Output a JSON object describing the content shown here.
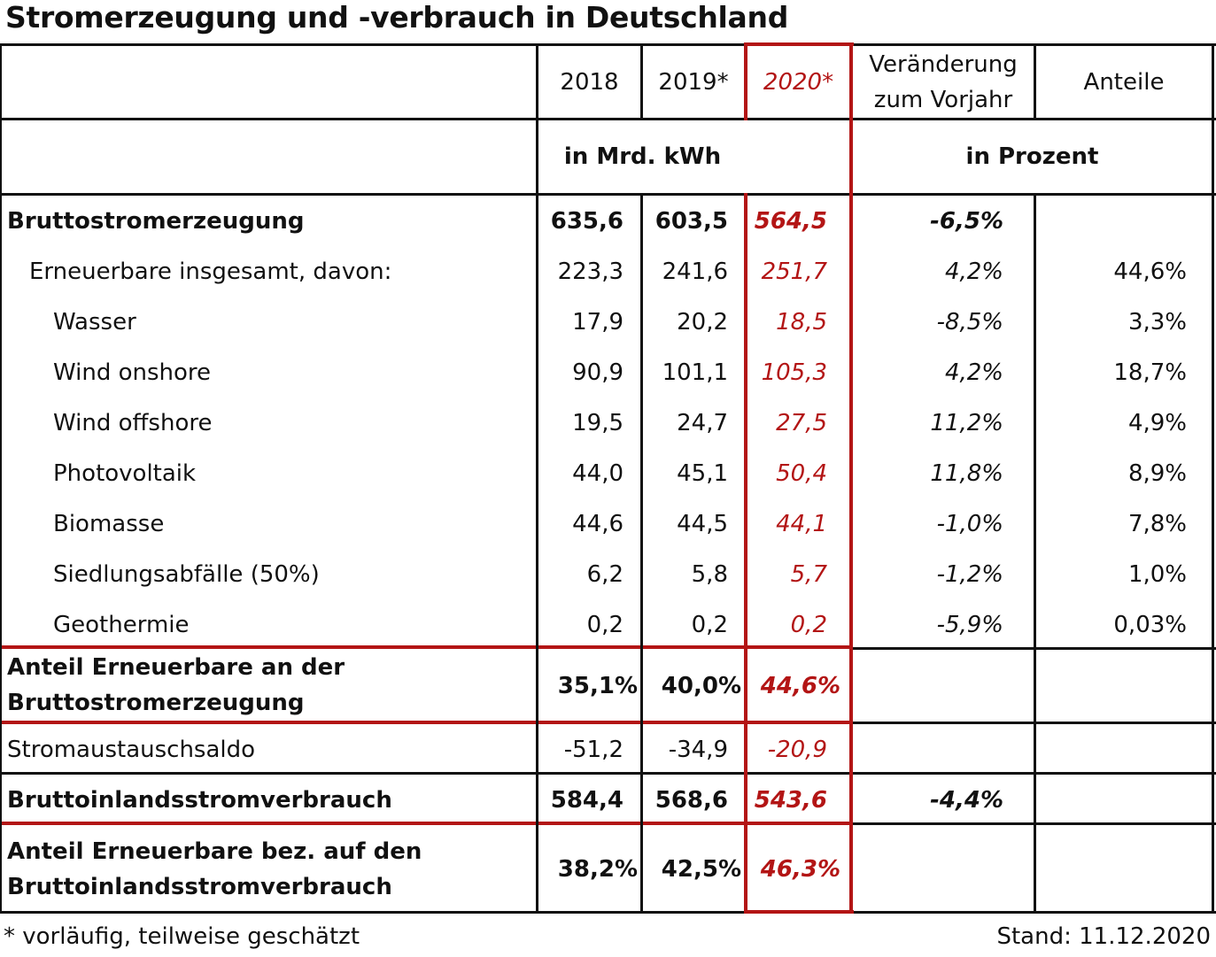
{
  "title": "Stromerzeugung und -verbrauch in Deutschland",
  "header": {
    "y2018": "2018",
    "y2019": "2019*",
    "y2020": "2020*",
    "change_line1": "Veränderung",
    "change_line2": "zum Vorjahr",
    "shares": "Anteile",
    "unit_abs": "in Mrd. kWh",
    "unit_pct": "in Prozent"
  },
  "rows": [
    {
      "label": "Bruttostromerzeugung",
      "v2018": "635,6",
      "v2019": "603,5",
      "v2020": "564,5",
      "change": "-6,5%",
      "share": ""
    },
    {
      "label": "Erneuerbare insgesamt, davon:",
      "v2018": "223,3",
      "v2019": "241,6",
      "v2020": "251,7",
      "change": "4,2%",
      "share": "44,6%"
    },
    {
      "label": "Wasser",
      "v2018": "17,9",
      "v2019": "20,2",
      "v2020": "18,5",
      "change": "-8,5%",
      "share": "3,3%"
    },
    {
      "label": "Wind onshore",
      "v2018": "90,9",
      "v2019": "101,1",
      "v2020": "105,3",
      "change": "4,2%",
      "share": "18,7%"
    },
    {
      "label": "Wind offshore",
      "v2018": "19,5",
      "v2019": "24,7",
      "v2020": "27,5",
      "change": "11,2%",
      "share": "4,9%"
    },
    {
      "label": "Photovoltaik",
      "v2018": "44,0",
      "v2019": "45,1",
      "v2020": "50,4",
      "change": "11,8%",
      "share": "8,9%"
    },
    {
      "label": "Biomasse",
      "v2018": "44,6",
      "v2019": "44,5",
      "v2020": "44,1",
      "change": "-1,0%",
      "share": "7,8%"
    },
    {
      "label": "Siedlungsabfälle (50%)",
      "v2018": "6,2",
      "v2019": "5,8",
      "v2020": "5,7",
      "change": "-1,2%",
      "share": "1,0%"
    },
    {
      "label": "Geothermie",
      "v2018": "0,2",
      "v2019": "0,2",
      "v2020": "0,2",
      "change": "-5,9%",
      "share": "0,03%"
    }
  ],
  "share_gross": {
    "label_line1": "Anteil Erneuerbare an der",
    "label_line2": "Bruttostromerzeugung",
    "v2018": "35,1%",
    "v2019": "40,0%",
    "v2020": "44,6%"
  },
  "exchange": {
    "label": "Stromaustauschsaldo",
    "v2018": "-51,2",
    "v2019": "-34,9",
    "v2020": "-20,9"
  },
  "consumption": {
    "label": "Bruttoinlandsstromverbrauch",
    "v2018": "584,4",
    "v2019": "568,6",
    "v2020": "543,6",
    "change": "-4,4%"
  },
  "share_cons": {
    "label_line1": "Anteil Erneuerbare bez. auf den",
    "label_line2": "Bruttoinlandsstromverbrauch",
    "v2018": "38,2%",
    "v2019": "42,5%",
    "v2020": "46,3%"
  },
  "footnote": "* vorläufig, teilweise geschätzt",
  "stand": "Stand: 11.12.2020"
}
